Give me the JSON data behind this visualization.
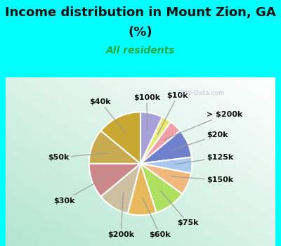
{
  "title_line1": "Income distribution in Mount Zion, GA",
  "title_line2": "(%)",
  "subtitle": "All residents",
  "title_color": "#111111",
  "subtitle_color": "#22aa44",
  "bg_cyan": "#00ffff",
  "watermark": "City-Data.com",
  "labels": [
    "$100k",
    "$10k",
    "> $200k",
    "$20k",
    "$125k",
    "$150k",
    "$75k",
    "$60k",
    "$200k",
    "$30k",
    "$50k",
    "$40k"
  ],
  "values": [
    7,
    3,
    4,
    9,
    5,
    7,
    10,
    9,
    10,
    11,
    11,
    14
  ],
  "colors": [
    "#a8a0d8",
    "#e8e870",
    "#f0a0a8",
    "#7080cc",
    "#a8c8f0",
    "#f0b87c",
    "#b0e060",
    "#e8b85c",
    "#ccc0a0",
    "#cc8888",
    "#c8aa50",
    "#c8a830"
  ],
  "title_fontsize": 13,
  "subtitle_fontsize": 10,
  "label_fontsize": 8
}
